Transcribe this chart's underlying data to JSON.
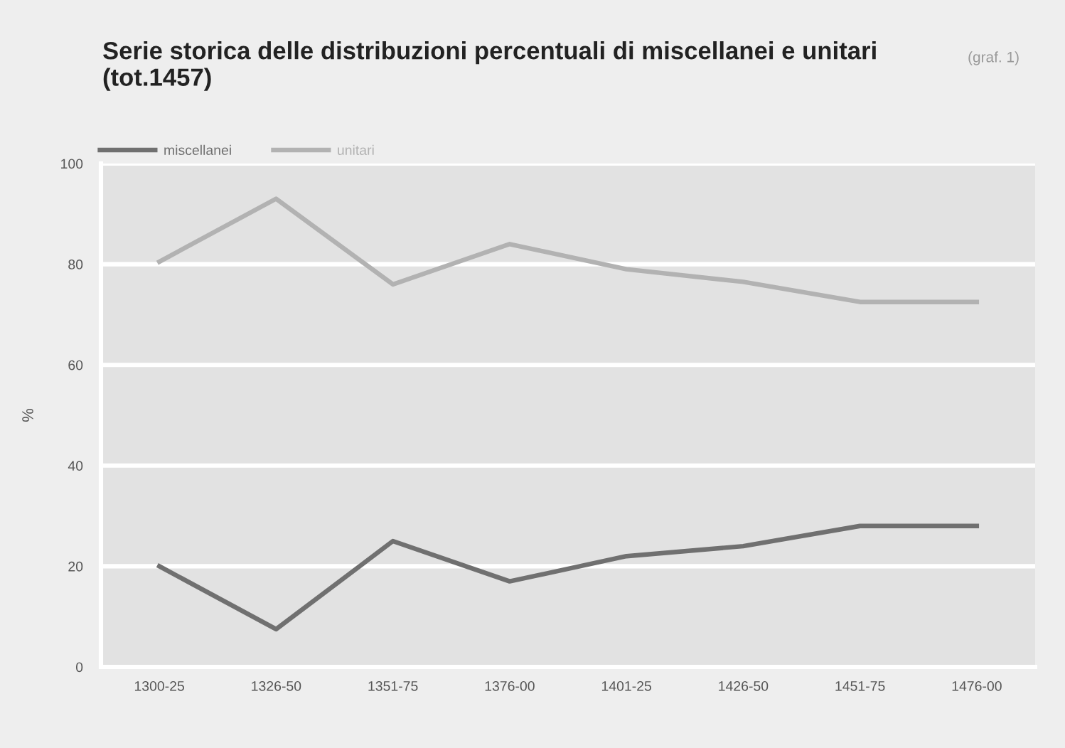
{
  "chart_data": {
    "type": "line",
    "title": "Serie storica delle distribuzioni percentuali di miscellanei e unitari\n(tot.1457)",
    "ylabel": "%",
    "annotations": [
      "(graf. 1)"
    ],
    "categories": [
      "1300-25",
      "1326-50",
      "1351-75",
      "1376-00",
      "1401-25",
      "1426-50",
      "1451-75",
      "1476-00"
    ],
    "series": [
      {
        "name": "miscellanei",
        "color": "#707070",
        "values": [
          20,
          7.5,
          25,
          17,
          22,
          24,
          28,
          28
        ]
      },
      {
        "name": "unitari",
        "color": "#b2b2b2",
        "values": [
          80.5,
          93,
          76,
          84,
          79,
          76.5,
          72.5,
          72.5
        ]
      }
    ],
    "ylim": [
      0,
      100
    ],
    "yticks": [
      0,
      20,
      40,
      60,
      80,
      100
    ],
    "grid": "y",
    "legend": "top left",
    "marker": "none",
    "line_style": "solid"
  }
}
